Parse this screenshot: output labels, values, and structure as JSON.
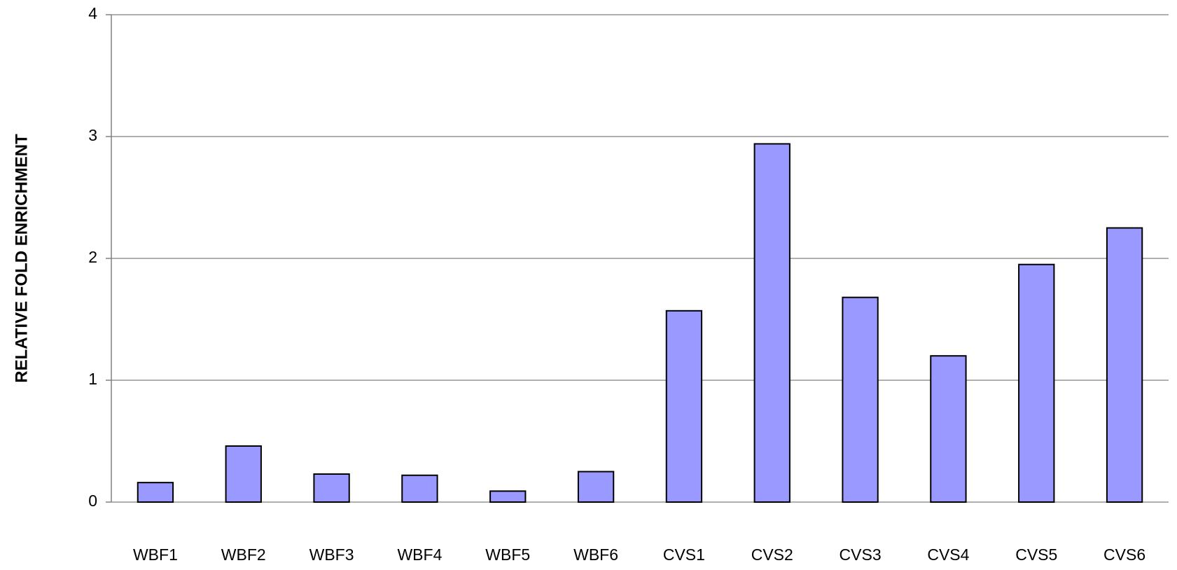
{
  "chart_data": {
    "type": "bar",
    "ylabel": "RELATIVE FOLD ENRICHMENT",
    "categories": [
      "WBF1",
      "WBF2",
      "WBF3",
      "WBF4",
      "WBF5",
      "WBF6",
      "CVS1",
      "CVS2",
      "CVS3",
      "CVS4",
      "CVS5",
      "CVS6"
    ],
    "values": [
      0.16,
      0.46,
      0.23,
      0.22,
      0.09,
      0.25,
      1.57,
      2.94,
      1.68,
      1.2,
      1.95,
      2.25
    ],
    "color": "#9999ff",
    "ylim": [
      0,
      4
    ],
    "yticks": [
      0,
      1,
      2,
      3,
      4
    ],
    "grid": true
  }
}
